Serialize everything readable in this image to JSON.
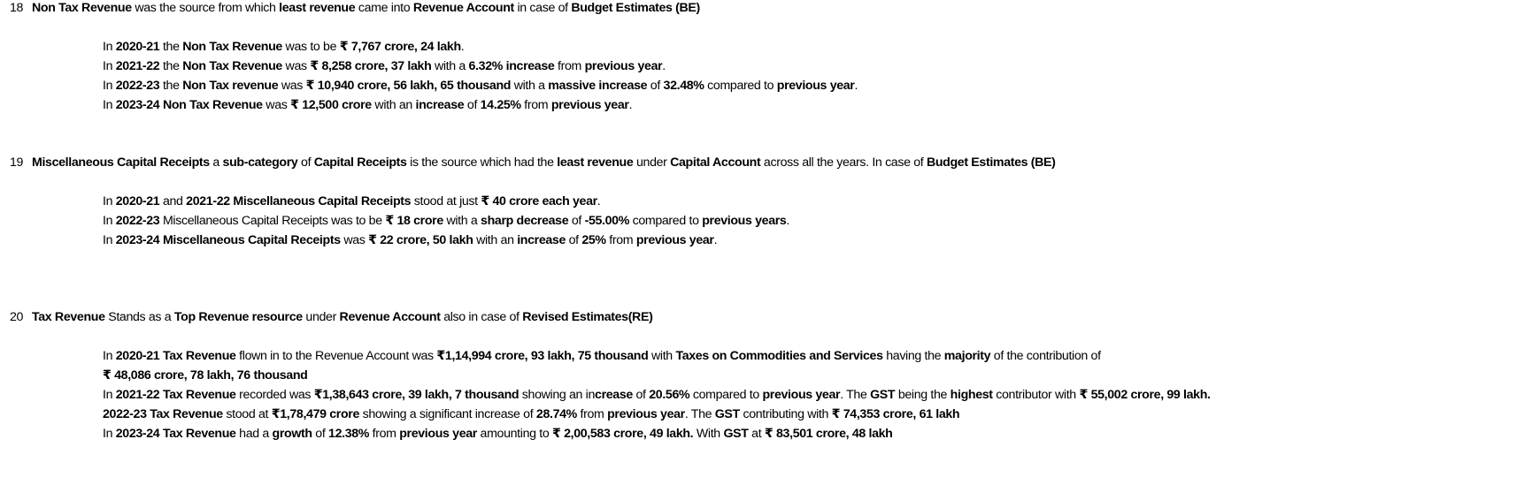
{
  "sections": [
    {
      "number": "18",
      "heading": [
        {
          "t": "Non Tax Revenue",
          "b": true
        },
        {
          "t": " was the source from which "
        },
        {
          "t": "least revenue",
          "b": true
        },
        {
          "t": " came into "
        },
        {
          "t": "Revenue Account",
          "b": true
        },
        {
          "t": " in case of "
        },
        {
          "t": "Budget Estimates (BE)",
          "b": true
        }
      ],
      "lines": [
        [
          {
            "t": "In "
          },
          {
            "t": "2020-21",
            "b": true
          },
          {
            "t": " the "
          },
          {
            "t": "Non Tax Revenue",
            "b": true
          },
          {
            "t": " was to be "
          },
          {
            "t": "₹ 7,767 crore, 24 lakh",
            "b": true
          },
          {
            "t": "."
          }
        ],
        [
          {
            "t": "In "
          },
          {
            "t": "2021-22",
            "b": true
          },
          {
            "t": " the "
          },
          {
            "t": "Non Tax Revenue",
            "b": true
          },
          {
            "t": " was "
          },
          {
            "t": "₹ 8,258 crore, 37 lakh",
            "b": true
          },
          {
            "t": " with a "
          },
          {
            "t": "6.32% increase",
            "b": true
          },
          {
            "t": " from "
          },
          {
            "t": "previous year",
            "b": true
          },
          {
            "t": "."
          }
        ],
        [
          {
            "t": "In "
          },
          {
            "t": "2022-23",
            "b": true
          },
          {
            "t": " the "
          },
          {
            "t": "Non Tax revenue",
            "b": true
          },
          {
            "t": " was "
          },
          {
            "t": "₹ 10,940 crore, 56 lakh, 65 thousand",
            "b": true
          },
          {
            "t": " with a "
          },
          {
            "t": "massive increase",
            "b": true
          },
          {
            "t": " of "
          },
          {
            "t": "32.48%",
            "b": true
          },
          {
            "t": " compared to "
          },
          {
            "t": "previous year",
            "b": true
          },
          {
            "t": "."
          }
        ],
        [
          {
            "t": "In "
          },
          {
            "t": "2023-24 Non Tax Revenue",
            "b": true
          },
          {
            "t": " was "
          },
          {
            "t": "₹ 12,500 crore",
            "b": true
          },
          {
            "t": " with an "
          },
          {
            "t": "increase",
            "b": true
          },
          {
            "t": " of "
          },
          {
            "t": "14.25%",
            "b": true
          },
          {
            "t": " from "
          },
          {
            "t": "previous year",
            "b": true
          },
          {
            "t": "."
          }
        ]
      ]
    },
    {
      "number": "19",
      "heading": [
        {
          "t": "Miscellaneous Capital Receipts",
          "b": true
        },
        {
          "t": " a "
        },
        {
          "t": "sub-category",
          "b": true
        },
        {
          "t": " of "
        },
        {
          "t": "Capital Receipts",
          "b": true
        },
        {
          "t": " is the source which had the "
        },
        {
          "t": "least revenue",
          "b": true
        },
        {
          "t": " under "
        },
        {
          "t": "Capital Account",
          "b": true
        },
        {
          "t": " across all the years. In case of "
        },
        {
          "t": "Budget Estimates (BE)",
          "b": true
        }
      ],
      "lines": [
        [
          {
            "t": "In "
          },
          {
            "t": "2020-21",
            "b": true
          },
          {
            "t": " and "
          },
          {
            "t": "2021-22 Miscellaneous Capital Receipts",
            "b": true
          },
          {
            "t": " stood at just "
          },
          {
            "t": "₹ 40 crore each year",
            "b": true
          },
          {
            "t": "."
          }
        ],
        [
          {
            "t": "In "
          },
          {
            "t": "2022-23",
            "b": true
          },
          {
            "t": " Miscellaneous Capital Receipts was to be "
          },
          {
            "t": "₹ 18 crore",
            "b": true
          },
          {
            "t": " with a "
          },
          {
            "t": "sharp decrease",
            "b": true
          },
          {
            "t": " of "
          },
          {
            "t": "-55.00%",
            "b": true
          },
          {
            "t": " compared to "
          },
          {
            "t": "previous years",
            "b": true
          },
          {
            "t": "."
          }
        ],
        [
          {
            "t": "In "
          },
          {
            "t": "2023-24 Miscellaneous Capital Receipts",
            "b": true
          },
          {
            "t": " was "
          },
          {
            "t": "₹ 22 crore, 50 lakh",
            "b": true
          },
          {
            "t": " with an "
          },
          {
            "t": "increase",
            "b": true
          },
          {
            "t": " of "
          },
          {
            "t": "25%",
            "b": true
          },
          {
            "t": " from "
          },
          {
            "t": "previous year",
            "b": true
          },
          {
            "t": "."
          }
        ]
      ]
    },
    {
      "number": "20",
      "heading": [
        {
          "t": "Tax Revenue",
          "b": true
        },
        {
          "t": " Stands as a "
        },
        {
          "t": "Top Revenue resource",
          "b": true
        },
        {
          "t": " under "
        },
        {
          "t": "Revenue Account",
          "b": true
        },
        {
          "t": " also in case of "
        },
        {
          "t": "Revised Estimates(RE)",
          "b": true
        }
      ],
      "lines": [
        [
          {
            "t": "In "
          },
          {
            "t": "2020-21 Tax Revenue",
            "b": true
          },
          {
            "t": " flown in to the Revenue Account was "
          },
          {
            "t": "₹1,14,994 crore, 93 lakh, 75 thousand",
            "b": true
          },
          {
            "t": " with "
          },
          {
            "t": "Taxes on Commodities and Services",
            "b": true
          },
          {
            "t": " having the "
          },
          {
            "t": "majority",
            "b": true
          },
          {
            "t": " of the contribution of"
          }
        ],
        [
          {
            "t": "₹ 48,086 crore, 78 lakh, 76 thousand",
            "b": true
          }
        ],
        [
          {
            "t": "In "
          },
          {
            "t": "2021-22 Tax Revenue",
            "b": true
          },
          {
            "t": " recorded was "
          },
          {
            "t": "₹1,38,643 crore, 39 lakh, 7 thousand",
            "b": true
          },
          {
            "t": " showing an in"
          },
          {
            "t": "crease",
            "b": true
          },
          {
            "t": " of "
          },
          {
            "t": "20.56%",
            "b": true
          },
          {
            "t": " compared to "
          },
          {
            "t": "previous year",
            "b": true
          },
          {
            "t": ". The "
          },
          {
            "t": "GST",
            "b": true
          },
          {
            "t": " being the "
          },
          {
            "t": "highest",
            "b": true
          },
          {
            "t": " contributor with "
          },
          {
            "t": "₹ 55,002 crore, 99 lakh.",
            "b": true
          }
        ],
        [
          {
            "t": "2022-23  Tax Revenue",
            "b": true
          },
          {
            "t": " stood at "
          },
          {
            "t": "₹1,78,479 crore",
            "b": true
          },
          {
            "t": " showing  a significant increase of "
          },
          {
            "t": "28.74%",
            "b": true
          },
          {
            "t": " from "
          },
          {
            "t": "previous year",
            "b": true
          },
          {
            "t": ". The "
          },
          {
            "t": "GST",
            "b": true
          },
          {
            "t": " contributing with "
          },
          {
            "t": "₹ 74,353 crore, 61 lakh",
            "b": true
          }
        ],
        [
          {
            "t": "In "
          },
          {
            "t": "2023-24 Tax Revenue",
            "b": true
          },
          {
            "t": " had a "
          },
          {
            "t": "growth",
            "b": true
          },
          {
            "t": " of "
          },
          {
            "t": "12.38%",
            "b": true
          },
          {
            "t": " from "
          },
          {
            "t": "previous year",
            "b": true
          },
          {
            "t": " amounting to "
          },
          {
            "t": "₹ 2,00,583 crore, 49 lakh. ",
            "b": true
          },
          {
            "t": "With "
          },
          {
            "t": "GST",
            "b": true
          },
          {
            "t": " at "
          },
          {
            "t": "₹ 83,501 crore, 48 lakh",
            "b": true
          }
        ]
      ]
    }
  ]
}
